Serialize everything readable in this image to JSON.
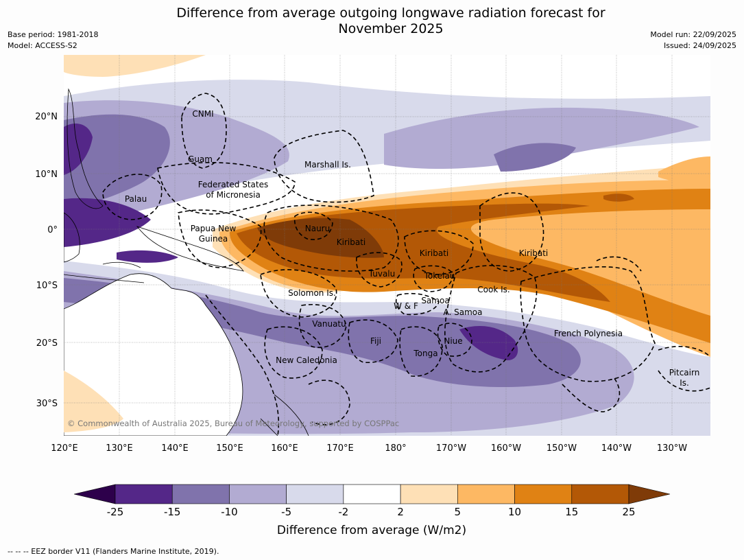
{
  "title": "Difference from average outgoing longwave radiation forecast for November 2025",
  "title_lines": [
    "Difference from average outgoing longwave radiation forecast for",
    "November 2025"
  ],
  "meta": {
    "base_period": "Base period: 1981-2018",
    "model": "Model: ACCESS-S2",
    "model_run": "Model run: 22/09/2025",
    "issued": "Issued: 24/09/2025"
  },
  "map": {
    "lat_labels": [
      "20°N",
      "10°N",
      "0°",
      "10°S",
      "20°S",
      "30°S"
    ],
    "lon_labels": [
      "120°E",
      "130°E",
      "140°E",
      "150°E",
      "160°E",
      "170°E",
      "180°",
      "170°W",
      "160°W",
      "150°W",
      "140°W",
      "130°W"
    ],
    "regions": {
      "cnmi": "CNMI",
      "guam": "Guam",
      "marshall": "Marshall Is.",
      "fsm_1": "Federated States",
      "fsm_2": "of Micronesia",
      "palau": "Palau",
      "png_1": "Papua New",
      "png_2": "Guinea",
      "nauru": "Nauru",
      "kiribati_w": "Kiribati",
      "kiribati_c": "Kiribati",
      "kiribati_e": "Kiribati",
      "tuvalu": "Tuvalu",
      "tokelau": "Tokelau",
      "cook": "Cook Is.",
      "solomon": "Solomon Is.",
      "wf": "W & F",
      "samoa": "Samoa",
      "asamoa": "A. Samoa",
      "vanuatu": "Vanuatu",
      "fiji": "Fiji",
      "niue": "Niue",
      "tonga": "Tonga",
      "frenchpoly": "French Polynesia",
      "newcal": "New Caledonia",
      "pitcairn_1": "Pitcairn",
      "pitcairn_2": "Is."
    },
    "copyright": "© Commonwealth of Australia 2025, Bureau of Meteorology, supported by COSPPac"
  },
  "colorbar": {
    "title": "Difference from average (W/m2)",
    "ticks": [
      "-25",
      "-15",
      "-10",
      "-5",
      "-2",
      "2",
      "5",
      "10",
      "15",
      "25"
    ],
    "colors": {
      "below": "#2d004b",
      "bins": [
        "#542788",
        "#8073ac",
        "#b2abd2",
        "#d8daeb",
        "#ffffff",
        "#fee0b6",
        "#fdb863",
        "#e08214",
        "#b35806"
      ],
      "above": "#7f3b08"
    }
  },
  "footer": "--  --  -- EEZ border V11 (Flanders Marine Institute, 2019)."
}
